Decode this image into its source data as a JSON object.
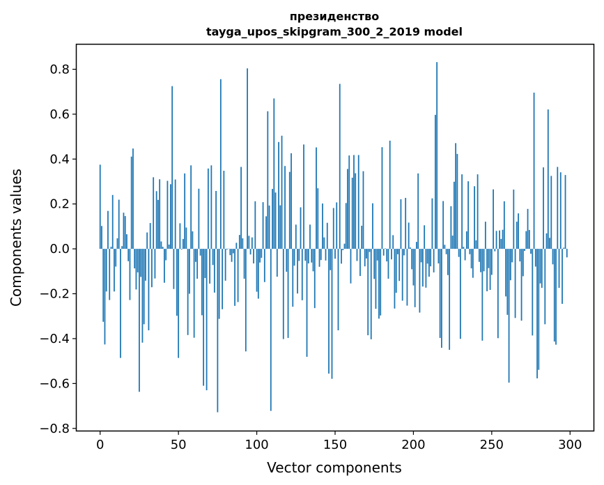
{
  "chart_data": {
    "type": "bar",
    "title_line1": "президенство",
    "title_line2": "tayga_upos_skipgram_300_2_2019 model",
    "xlabel": "Vector components",
    "ylabel": "Components values",
    "xlim": [
      -15,
      315
    ],
    "ylim": [
      -0.81,
      0.91
    ],
    "xticks": [
      0,
      50,
      100,
      150,
      200,
      250,
      300
    ],
    "xtick_labels": [
      "0",
      "50",
      "100",
      "150",
      "200",
      "250",
      "300"
    ],
    "yticks": [
      -0.8,
      -0.6,
      -0.4,
      -0.2,
      0.0,
      0.2,
      0.4,
      0.6,
      0.8
    ],
    "ytick_labels": [
      "−0.8",
      "−0.6",
      "−0.4",
      "−0.2",
      "0.0",
      "0.2",
      "0.4",
      "0.6",
      "0.8"
    ],
    "bar_color": "#1f77b4",
    "grid": false,
    "values": [
      0.375,
      0.102,
      -0.325,
      -0.426,
      -0.19,
      0.169,
      -0.228,
      0.009,
      0.24,
      -0.19,
      -0.079,
      0.047,
      0.219,
      -0.486,
      0.012,
      0.161,
      0.146,
      0.065,
      -0.055,
      -0.228,
      0.411,
      0.447,
      -0.087,
      -0.181,
      -0.105,
      -0.637,
      -0.125,
      -0.418,
      -0.336,
      -0.142,
      0.073,
      -0.363,
      0.115,
      -0.171,
      0.319,
      -0.132,
      0.257,
      0.218,
      0.31,
      0.033,
      0.009,
      -0.151,
      -0.051,
      0.303,
      0.019,
      0.288,
      0.725,
      -0.179,
      0.309,
      -0.298,
      -0.486,
      0.114,
      -0.003,
      0.044,
      0.336,
      0.095,
      -0.384,
      -0.2,
      0.372,
      0.078,
      -0.396,
      -0.058,
      -0.133,
      0.268,
      -0.03,
      -0.296,
      -0.61,
      -0.13,
      -0.63,
      0.358,
      -0.155,
      0.372,
      -0.072,
      -0.195,
      0.258,
      -0.728,
      -0.312,
      0.756,
      -0.269,
      0.348,
      -0.142,
      -0.003,
      0.001,
      -0.028,
      -0.058,
      -0.02,
      -0.254,
      0.027,
      -0.237,
      0.062,
      0.365,
      0.047,
      -0.133,
      -0.457,
      0.804,
      0.058,
      -0.025,
      0.051,
      -0.065,
      0.212,
      -0.191,
      -0.222,
      -0.061,
      -0.04,
      0.208,
      -0.148,
      0.145,
      0.613,
      0.193,
      -0.722,
      0.267,
      0.67,
      0.251,
      -0.124,
      0.476,
      0.194,
      0.504,
      -0.402,
      0.369,
      -0.102,
      -0.397,
      0.343,
      0.426,
      -0.258,
      -0.075,
      0.108,
      -0.199,
      -0.054,
      0.185,
      -0.229,
      0.465,
      -0.053,
      -0.481,
      -0.065,
      0.108,
      -0.061,
      -0.1,
      -0.264,
      0.452,
      0.27,
      -0.08,
      -0.05,
      0.202,
      0.051,
      -0.052,
      0.116,
      -0.556,
      -0.095,
      -0.579,
      0.182,
      -0.044,
      0.207,
      -0.363,
      0.735,
      -0.066,
      -0.006,
      0.023,
      0.204,
      0.356,
      0.416,
      -0.154,
      0.317,
      0.418,
      0.337,
      -0.054,
      0.418,
      -0.121,
      0.103,
      0.346,
      -0.078,
      -0.043,
      -0.385,
      -0.014,
      -0.403,
      0.203,
      -0.134,
      -0.267,
      -0.052,
      -0.311,
      -0.297,
      0.453,
      -0.03,
      0.002,
      -0.056,
      -0.133,
      0.482,
      -0.047,
      0.061,
      -0.266,
      -0.196,
      -0.024,
      -0.143,
      0.221,
      -0.231,
      -0.029,
      0.227,
      -0.253,
      0.117,
      0.006,
      -0.091,
      -0.163,
      -0.26,
      0.031,
      0.336,
      -0.284,
      -0.06,
      -0.168,
      0.105,
      -0.173,
      -0.066,
      -0.124,
      -0.078,
      0.225,
      -0.105,
      0.597,
      0.832,
      -0.065,
      -0.397,
      -0.441,
      0.213,
      0.018,
      -0.024,
      -0.117,
      -0.45,
      0.19,
      0.059,
      0.299,
      0.471,
      0.423,
      -0.036,
      -0.401,
      0.332,
      0.009,
      -0.051,
      0.078,
      0.301,
      -0.024,
      -0.087,
      -0.129,
      0.279,
      0.038,
      0.332,
      -0.058,
      -0.104,
      -0.409,
      -0.1,
      0.121,
      -0.189,
      -0.086,
      -0.183,
      -0.116,
      0.265,
      -0.011,
      0.08,
      -0.398,
      0.082,
      0.044,
      0.085,
      0.212,
      -0.212,
      -0.294,
      -0.596,
      -0.14,
      -0.06,
      0.264,
      -0.308,
      0.121,
      0.158,
      -0.056,
      -0.32,
      -0.122,
      -0.009,
      0.079,
      0.178,
      0.084,
      -0.022,
      -0.386,
      0.696,
      -0.079,
      -0.577,
      -0.539,
      -0.154,
      -0.174,
      0.363,
      -0.336,
      0.069,
      0.621,
      0.049,
      0.325,
      -0.069,
      -0.413,
      -0.427,
      0.365,
      -0.174,
      0.341,
      -0.245,
      0.005,
      0.329,
      -0.038
    ]
  }
}
